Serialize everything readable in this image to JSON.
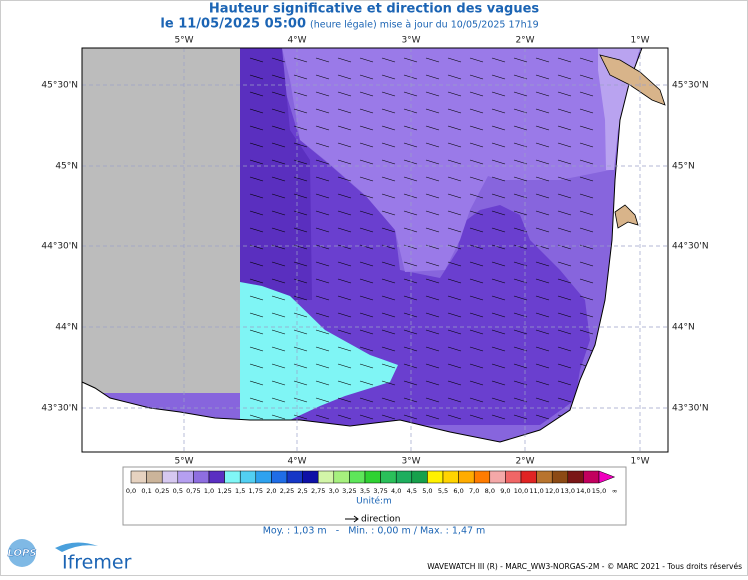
{
  "header": {
    "title": "Hauteur significative et direction des vagues",
    "date": "le 11/05/2025 05:00",
    "update": "(heure légale) mise à jour du 10/05/2025 17h19"
  },
  "axes": {
    "lon_labels": [
      "5°W",
      "4°W",
      "3°W",
      "2°W",
      "1°W"
    ],
    "lat_labels": [
      "45°30'N",
      "45°N",
      "44°30'N",
      "44°N",
      "43°30'N"
    ]
  },
  "colorbar": {
    "labels": [
      "0,0",
      "0,1",
      "0,25",
      "0,5",
      "0,75",
      "1,0",
      "1,25",
      "1,5",
      "1,75",
      "2,0",
      "2,25",
      "2,5",
      "2,75",
      "3,0",
      "3,25",
      "3,5",
      "3,75",
      "4,0",
      "4,5",
      "5,0",
      "5,5",
      "6,0",
      "7,0",
      "8,0",
      "9,0",
      "10,0",
      "11,0",
      "12,0",
      "13,0",
      "14,0",
      "15,0",
      "∞"
    ],
    "colors": [
      "#e6d2c0",
      "#cbb49a",
      "#d6c8f0",
      "#b59ff0",
      "#8e6ee0",
      "#5a2fc2",
      "#80f6f6",
      "#52cff2",
      "#2ea2ef",
      "#1f6de6",
      "#1537c6",
      "#0e10a6",
      "#d2f5a8",
      "#a6f07e",
      "#5ee65a",
      "#2fd232",
      "#2ac05a",
      "#1eae5e",
      "#17a04c",
      "#fff200",
      "#ffd400",
      "#ffac00",
      "#ff7c00",
      "#f4a8a8",
      "#f06666",
      "#e02424",
      "#b8742e",
      "#8c4a14",
      "#7a1616",
      "#c2005e",
      "#f000be"
    ],
    "unit": "Unité:m"
  },
  "legend": {
    "direction": "direction"
  },
  "stats": "Moy. : 1,03 m   -   Min. : 0,00 m / Max. : 1,47 m",
  "footer": "WAVEWATCH III (R) - MARC_WW3-NORGAS-2M - © MARC 2021 - Tous droits réservés",
  "logos": {
    "lops": "LOPS",
    "ifremer": "Ifremer"
  }
}
